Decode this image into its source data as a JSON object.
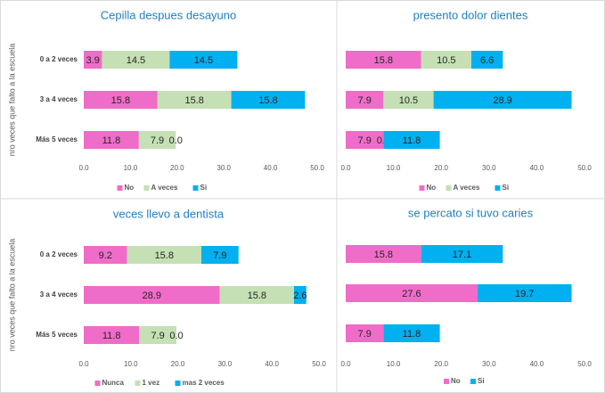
{
  "chart_data": [
    {
      "type": "bar",
      "orientation": "horizontal",
      "stacked": true,
      "title": "Cepilla despues desayuno",
      "y_label": "nro veces que falto a la escuela",
      "categories": [
        "0 a 2 veces",
        "3 a 4 veces",
        "Más 5 veces"
      ],
      "series": [
        {
          "name": "No",
          "color": "#f06cc9",
          "values": [
            3.9,
            15.8,
            11.8
          ],
          "value_labels": [
            "3.9",
            "15.8",
            "11.8"
          ]
        },
        {
          "name": "A veces",
          "color": "#c5e0b4",
          "values": [
            14.5,
            15.8,
            7.9
          ],
          "value_labels": [
            "14.5",
            "15.8",
            "7.9"
          ]
        },
        {
          "name": "Si",
          "color": "#00b0f0",
          "values": [
            14.5,
            15.8,
            0.0
          ],
          "value_labels": [
            "14.5",
            "15.8",
            "0.0"
          ]
        }
      ],
      "xlim": [
        0,
        50
      ],
      "xticks": [
        {
          "value": 0,
          "label": "0.0"
        },
        {
          "value": 10,
          "label": "10.0"
        },
        {
          "value": 20,
          "label": "20.0"
        },
        {
          "value": 30,
          "label": "30.0"
        },
        {
          "value": 40,
          "label": "40.0"
        },
        {
          "value": 50,
          "label": "50.0"
        }
      ],
      "legend": "bottom"
    },
    {
      "type": "bar",
      "orientation": "horizontal",
      "stacked": true,
      "title": "presento dolor dientes",
      "categories": [
        null,
        null,
        null
      ],
      "series": [
        {
          "name": "No",
          "color": "#f06cc9",
          "values": [
            15.8,
            7.9,
            7.9
          ],
          "value_labels": [
            "15.8",
            "7.9",
            "7.9"
          ]
        },
        {
          "name": "A veces",
          "color": "#c5e0b4",
          "values": [
            10.5,
            10.5,
            0.0
          ],
          "value_labels": [
            "10.5",
            "10.5",
            "0.0"
          ]
        },
        {
          "name": "Si",
          "color": "#00b0f0",
          "values": [
            6.6,
            28.9,
            11.8
          ],
          "value_labels": [
            "6.6",
            "28.9",
            "11.8"
          ]
        }
      ],
      "xlim": [
        0,
        50
      ],
      "xticks": [
        {
          "value": 0,
          "label": "0.0"
        },
        {
          "value": 10,
          "label": "10.0"
        },
        {
          "value": 20,
          "label": "20.0"
        },
        {
          "value": 30,
          "label": "30.0"
        },
        {
          "value": 40,
          "label": "40.0"
        },
        {
          "value": 50,
          "label": "50.0"
        }
      ],
      "legend": "bottom"
    },
    {
      "type": "bar",
      "orientation": "horizontal",
      "stacked": true,
      "title": "veces llevo a dentista",
      "y_label": "nro veces que falto a la escuela",
      "categories": [
        "0 a 2 veces",
        "3 a 4 veces",
        "Más 5 veces"
      ],
      "series": [
        {
          "name": "Nunca",
          "color": "#f06cc9",
          "values": [
            9.2,
            28.9,
            11.8
          ],
          "value_labels": [
            "9.2",
            "28.9",
            "11.8"
          ]
        },
        {
          "name": "1 vez",
          "color": "#c5e0b4",
          "values": [
            15.8,
            15.8,
            7.9
          ],
          "value_labels": [
            "15.8",
            "15.8",
            "7.9"
          ]
        },
        {
          "name": "mas 2 veces",
          "color": "#00b0f0",
          "values": [
            7.9,
            2.6,
            0.0
          ],
          "value_labels": [
            "7.9",
            "2.6",
            "0.0"
          ]
        }
      ],
      "xlim": [
        0,
        50
      ],
      "xticks": [
        {
          "value": 0,
          "label": "0.0"
        },
        {
          "value": 10,
          "label": "10.0"
        },
        {
          "value": 20,
          "label": "20.0"
        },
        {
          "value": 30,
          "label": "30.0"
        },
        {
          "value": 40,
          "label": "40.0"
        },
        {
          "value": 50,
          "label": "50.0"
        }
      ],
      "legend": "bottom"
    },
    {
      "type": "bar",
      "orientation": "horizontal",
      "stacked": true,
      "title": "se percato si tuvo caries",
      "categories": [
        null,
        null,
        null
      ],
      "series": [
        {
          "name": "No",
          "color": "#f06cc9",
          "values": [
            15.8,
            27.6,
            7.9
          ],
          "value_labels": [
            "15.8",
            "27.6",
            "7.9"
          ]
        },
        {
          "name": "Si",
          "color": "#00b0f0",
          "values": [
            17.1,
            19.7,
            11.8
          ],
          "value_labels": [
            "17.1",
            "19.7",
            "11.8"
          ]
        }
      ],
      "xlim": [
        0,
        50
      ],
      "xticks": [
        {
          "value": 0,
          "label": "0.0"
        },
        {
          "value": 10,
          "label": "10.0"
        },
        {
          "value": 20,
          "label": "20.0"
        },
        {
          "value": 30,
          "label": "30.0"
        },
        {
          "value": 40,
          "label": "40.0"
        },
        {
          "value": 50,
          "label": "50.0"
        }
      ],
      "legend": "bottom"
    }
  ]
}
